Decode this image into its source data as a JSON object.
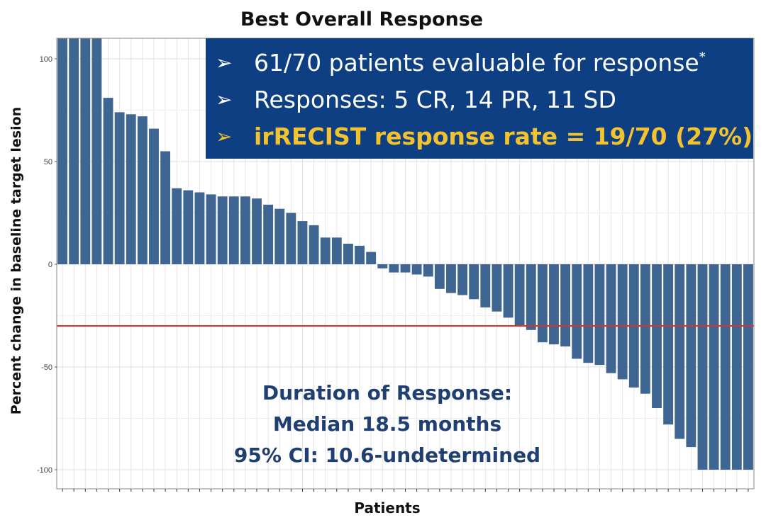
{
  "chart_data": {
    "type": "bar",
    "title": "Best Overall Response",
    "xlabel": "Patients",
    "ylabel": "Percent change in baseline target lesion",
    "ylim": [
      -110,
      110
    ],
    "yticks": [
      100,
      50,
      0,
      -50,
      -100
    ],
    "grid": true,
    "bar_color": "#3f6592",
    "threshold": {
      "value": -30,
      "color": "#e0302a"
    },
    "values": [
      110,
      110,
      110,
      110,
      81,
      74,
      73,
      72,
      66,
      55,
      37,
      36,
      35,
      34,
      33,
      33,
      33,
      32,
      29,
      27,
      25,
      21,
      19,
      13,
      13,
      10,
      9,
      6,
      -2,
      -4,
      -4,
      -5,
      -6,
      -12,
      -14,
      -15,
      -17,
      -21,
      -23,
      -26,
      -30,
      -32,
      -38,
      -39,
      -40,
      -46,
      -48,
      -49,
      -53,
      -56,
      -60,
      -63,
      -70,
      -78,
      -85,
      -89,
      -100,
      -100,
      -100,
      -100,
      -100
    ]
  },
  "info_box": {
    "bg_color": "#0d3f82",
    "arrow": "➢",
    "line1": "61/70 patients evaluable for response",
    "footnote": "*",
    "line2": "Responses: 5 CR, 14 PR, 11 SD",
    "line3": "irRECIST response rate = 19/70 (27%)",
    "highlight_color": "#f2c230"
  },
  "duration": {
    "line1": "Duration of Response:",
    "line2": "Median 18.5 months",
    "line3": "95% CI: 10.6-undetermined"
  }
}
